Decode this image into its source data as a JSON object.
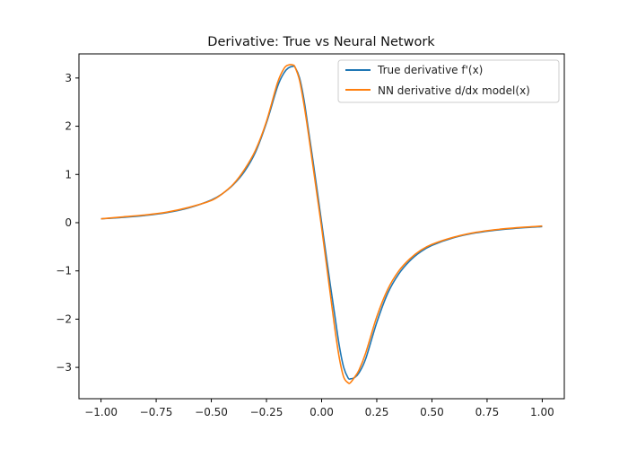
{
  "chart_data": {
    "type": "line",
    "title": "Derivative: True vs Neural Network",
    "xlabel": "",
    "ylabel": "",
    "xlim": [
      -1.1,
      1.1
    ],
    "ylim": [
      -3.65,
      3.5
    ],
    "x_ticks": [
      -1.0,
      -0.75,
      -0.5,
      -0.25,
      0.0,
      0.25,
      0.5,
      0.75,
      1.0
    ],
    "x_tick_labels": [
      "−1.00",
      "−0.75",
      "−0.50",
      "−0.25",
      "0.00",
      "0.25",
      "0.50",
      "0.75",
      "1.00"
    ],
    "y_ticks": [
      -3,
      -2,
      -1,
      0,
      1,
      2,
      3
    ],
    "y_tick_labels": [
      "−3",
      "−2",
      "−1",
      "0",
      "1",
      "2",
      "3"
    ],
    "grid": false,
    "legend_position": "top-right",
    "series": [
      {
        "name": "True derivative f'(x)",
        "color": "#1f77b4",
        "x": [
          -1.0,
          -0.9,
          -0.8,
          -0.7,
          -0.6,
          -0.5,
          -0.45,
          -0.4,
          -0.35,
          -0.3,
          -0.25,
          -0.2,
          -0.17,
          -0.15,
          -0.13,
          -0.12,
          -0.1,
          -0.08,
          -0.06,
          -0.04,
          -0.02,
          0.0,
          0.02,
          0.04,
          0.06,
          0.08,
          0.1,
          0.12,
          0.13,
          0.15,
          0.17,
          0.2,
          0.25,
          0.3,
          0.35,
          0.4,
          0.45,
          0.5,
          0.6,
          0.7,
          0.8,
          0.9,
          1.0
        ],
        "y": [
          0.08,
          0.11,
          0.15,
          0.21,
          0.31,
          0.47,
          0.6,
          0.79,
          1.06,
          1.46,
          2.07,
          2.82,
          3.11,
          3.21,
          3.24,
          3.22,
          3.0,
          2.55,
          1.93,
          1.31,
          0.66,
          0.0,
          -0.66,
          -1.31,
          -1.93,
          -2.55,
          -3.0,
          -3.22,
          -3.24,
          -3.21,
          -3.11,
          -2.82,
          -2.07,
          -1.46,
          -1.06,
          -0.79,
          -0.6,
          -0.47,
          -0.31,
          -0.21,
          -0.15,
          -0.11,
          -0.08
        ]
      },
      {
        "name": "NN derivative d/dx model(x)",
        "color": "#ff7f0e",
        "x": [
          -1.0,
          -0.9,
          -0.8,
          -0.7,
          -0.6,
          -0.5,
          -0.45,
          -0.4,
          -0.35,
          -0.3,
          -0.25,
          -0.2,
          -0.17,
          -0.15,
          -0.13,
          -0.12,
          -0.1,
          -0.08,
          -0.06,
          -0.04,
          -0.02,
          0.0,
          0.02,
          0.04,
          0.06,
          0.08,
          0.1,
          0.12,
          0.13,
          0.15,
          0.17,
          0.2,
          0.25,
          0.3,
          0.35,
          0.4,
          0.45,
          0.5,
          0.6,
          0.7,
          0.8,
          0.9,
          1.0
        ],
        "y": [
          0.08,
          0.12,
          0.16,
          0.22,
          0.32,
          0.46,
          0.6,
          0.8,
          1.1,
          1.5,
          2.1,
          2.9,
          3.2,
          3.27,
          3.27,
          3.22,
          2.95,
          2.45,
          1.85,
          1.2,
          0.55,
          -0.1,
          -0.8,
          -1.5,
          -2.2,
          -2.8,
          -3.2,
          -3.32,
          -3.32,
          -3.2,
          -3.05,
          -2.7,
          -1.95,
          -1.38,
          -1.0,
          -0.75,
          -0.57,
          -0.45,
          -0.3,
          -0.2,
          -0.14,
          -0.1,
          -0.07
        ]
      }
    ]
  }
}
